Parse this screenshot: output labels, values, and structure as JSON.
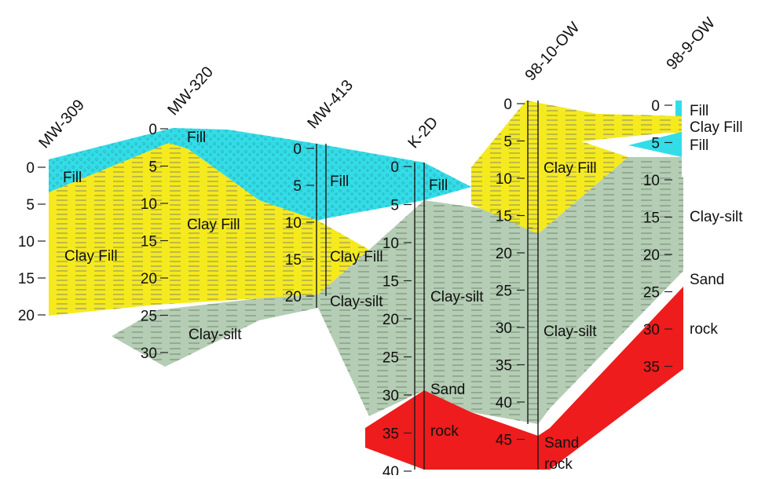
{
  "wells": [
    {
      "id": "mw309",
      "name": "MW-309"
    },
    {
      "id": "mw320",
      "name": "MW-320"
    },
    {
      "id": "mw413",
      "name": "MW-413"
    },
    {
      "id": "k2d",
      "name": "K-2D"
    },
    {
      "id": "w9810",
      "name": "98-10-OW"
    },
    {
      "id": "w989",
      "name": "98-9-OW"
    }
  ],
  "depth_labels": {
    "mw309": [
      "0",
      "5",
      "10",
      "15",
      "20"
    ],
    "mw320": [
      "0",
      "5",
      "10",
      "15",
      "20",
      "25",
      "30"
    ],
    "mw413": [
      "0",
      "5",
      "10",
      "15",
      "20"
    ],
    "k2d": [
      "0",
      "5",
      "10",
      "15",
      "20",
      "25",
      "30",
      "35",
      "40"
    ],
    "w9810": [
      "0",
      "5",
      "10",
      "15",
      "20",
      "25",
      "30",
      "35",
      "40",
      "45"
    ],
    "w989": [
      "0",
      "5",
      "10",
      "15",
      "20",
      "25",
      "30",
      "35"
    ]
  },
  "unit_labels": {
    "fill_309": "Fill",
    "clayfill_309": "Clay Fill",
    "fill_320": "Fill",
    "clayfill_320": "Clay Fill",
    "claysilt_320": "Clay-silt",
    "fill_413": "Fill",
    "clayfill_413": "Clay Fill",
    "claysilt_413": "Clay-silt",
    "fill_k2d": "Fill",
    "claysilt_k2d": "Clay-silt",
    "sand_k2d": "Sand",
    "rock_k2d": "rock",
    "clayfill_9810": "Clay Fill",
    "claysilt_9810": "Clay-silt",
    "sand_9810": "Sand",
    "rock_9810": "rock",
    "fill1_989": "Fill",
    "clayfill_989": "Clay Fill",
    "fill2_989": "Fill",
    "claysilt_989": "Clay-silt",
    "sand_989": "Sand",
    "rock_989": "rock"
  },
  "colors": {
    "fill": "#33dde8",
    "clay_fill": "#f5ea1e",
    "clay_silt": "#b4cdb4",
    "sand": "#ffffff",
    "rock": "#ee1c1c",
    "log_line": "#1a1a1a"
  }
}
